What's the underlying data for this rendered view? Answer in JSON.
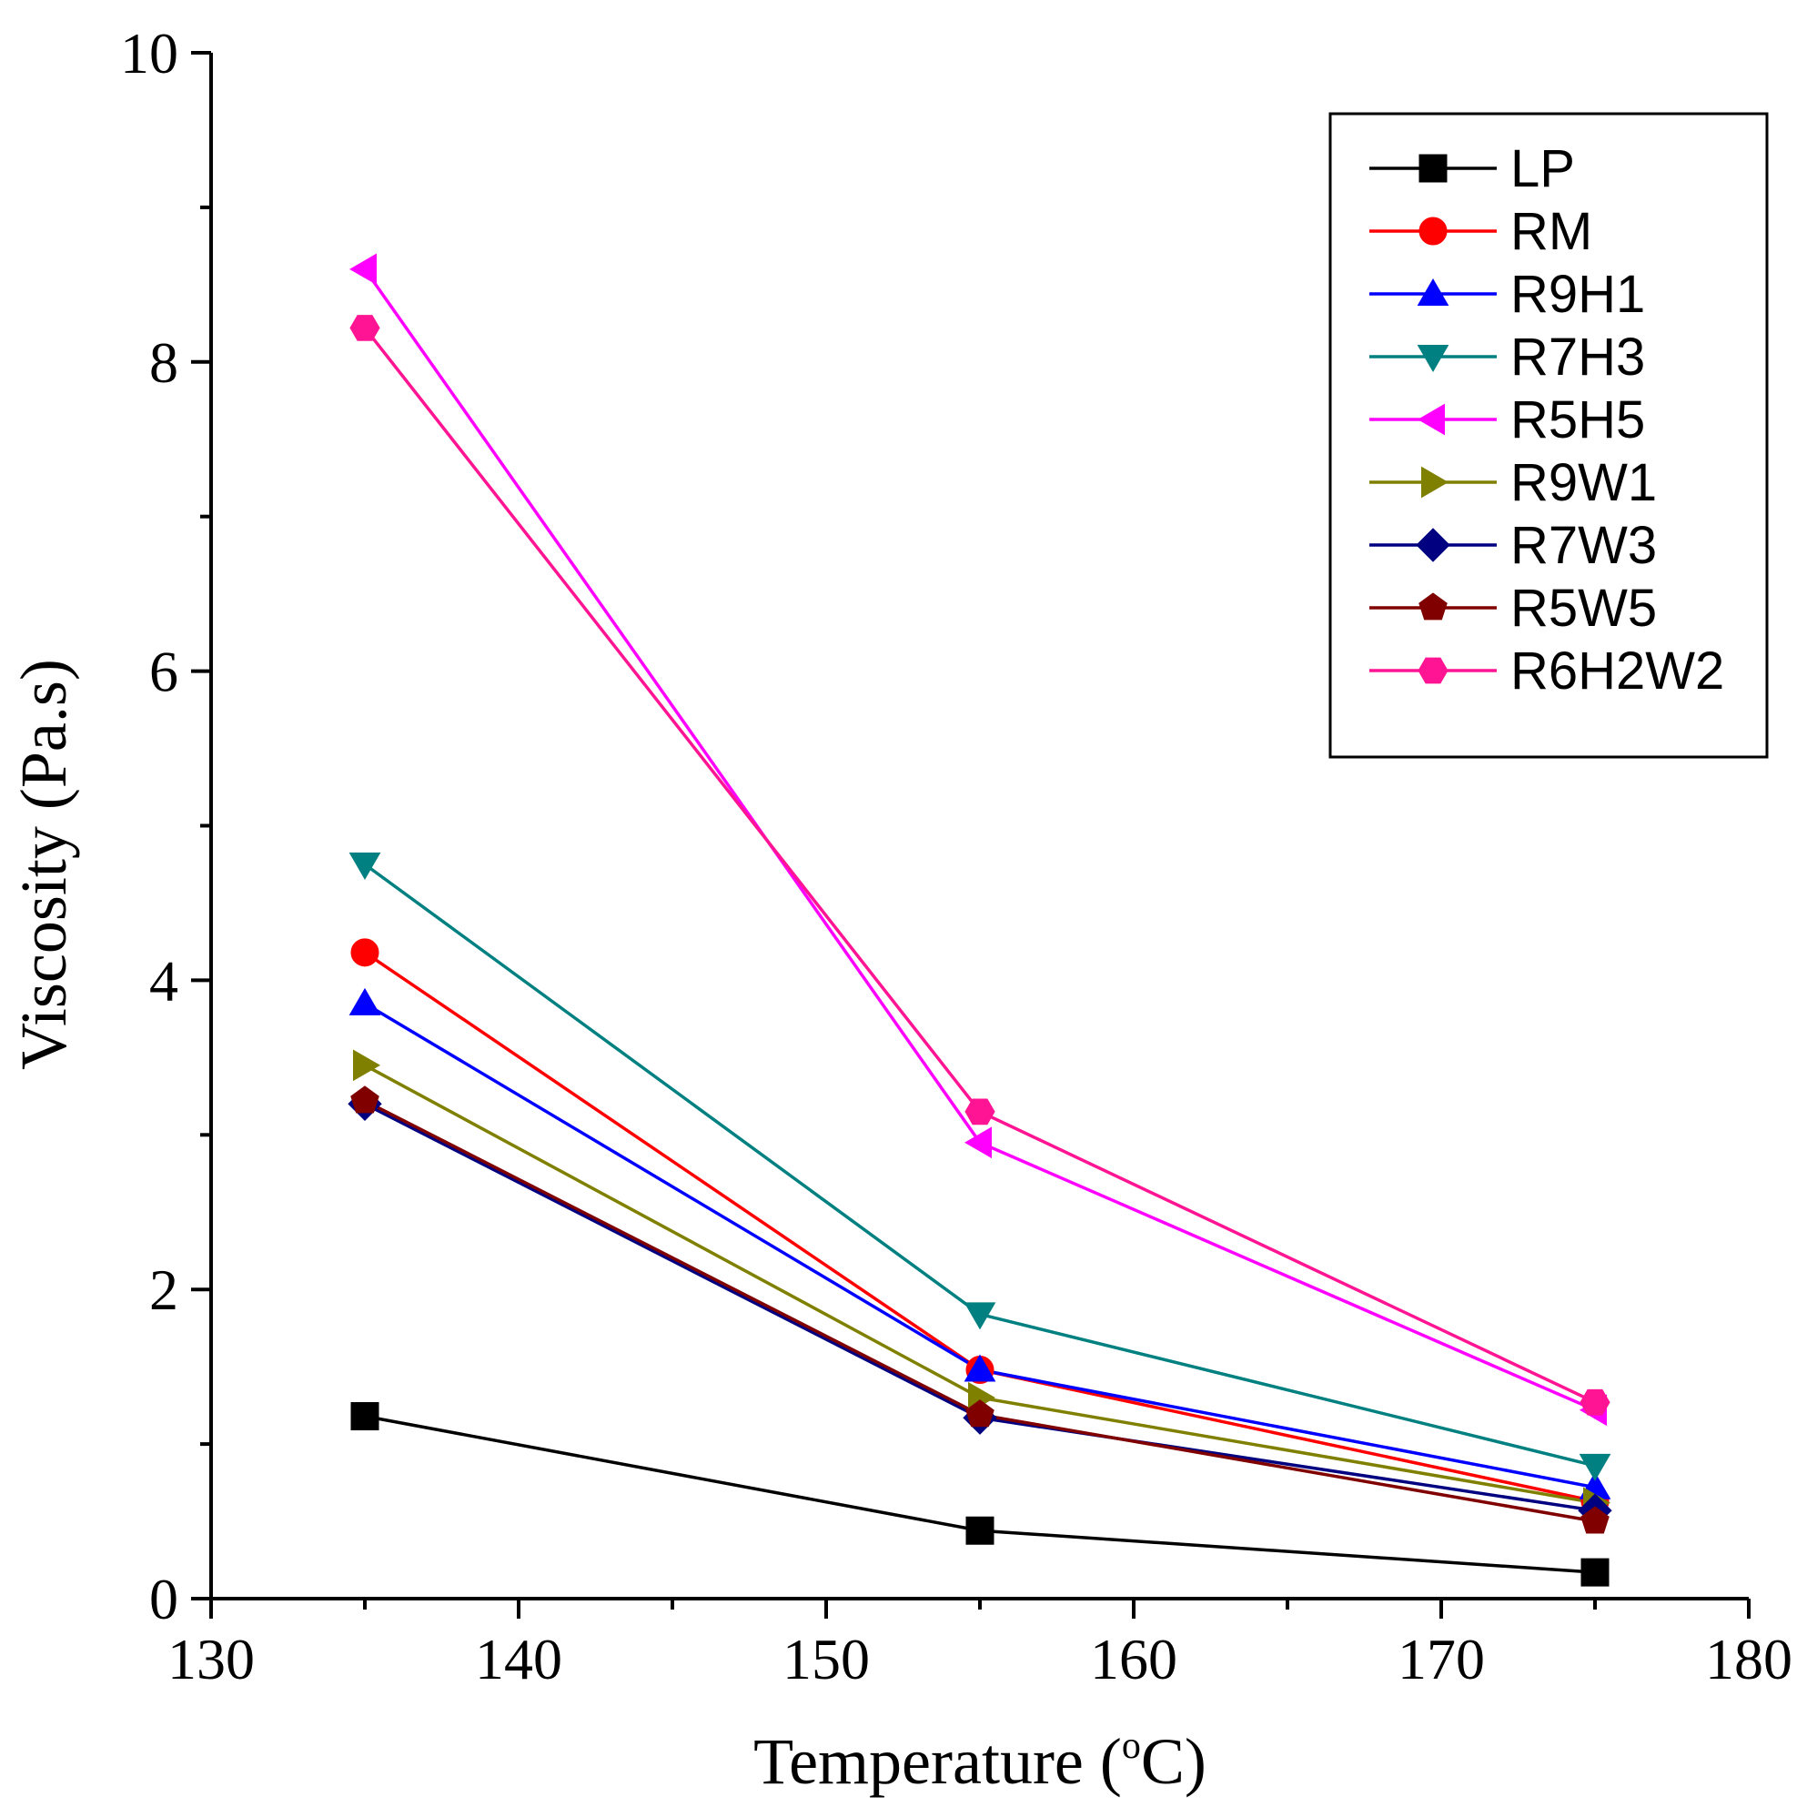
{
  "chart_data": {
    "type": "line",
    "title": "",
    "xlabel": "Temperature (",
    "xlabel_sup": "o",
    "xlabel_suffix": "C)",
    "ylabel": "Viscosity (Pa.s)",
    "xlim": [
      130,
      180
    ],
    "ylim": [
      0,
      10
    ],
    "x_major_ticks": [
      130,
      140,
      150,
      160,
      170,
      180
    ],
    "x_tick_labels": [
      "130",
      "140",
      "150",
      "160",
      "170",
      "180"
    ],
    "x_minor_ticks": [
      135,
      145,
      155,
      165,
      175
    ],
    "y_major_ticks": [
      0,
      2,
      4,
      6,
      8,
      10
    ],
    "y_tick_labels": [
      "0",
      "2",
      "4",
      "6",
      "8",
      "10"
    ],
    "y_minor_ticks": [
      1,
      3,
      5,
      7,
      9
    ],
    "grid": false,
    "legend_position": "top-right",
    "x": [
      135,
      155,
      175
    ],
    "series": [
      {
        "name": "LP",
        "values": [
          1.18,
          0.44,
          0.17
        ],
        "color": "#000000",
        "marker": "square"
      },
      {
        "name": "RM",
        "values": [
          4.18,
          1.48,
          0.63
        ],
        "color": "#ff0000",
        "marker": "circle"
      },
      {
        "name": "R9H1",
        "values": [
          3.85,
          1.48,
          0.72
        ],
        "color": "#0000ff",
        "marker": "triangle-up"
      },
      {
        "name": "R7H3",
        "values": [
          4.75,
          1.84,
          0.86
        ],
        "color": "#008080",
        "marker": "triangle-down"
      },
      {
        "name": "R5H5",
        "values": [
          8.6,
          2.95,
          1.22
        ],
        "color": "#ff00ff",
        "marker": "triangle-left"
      },
      {
        "name": "R9W1",
        "values": [
          3.45,
          1.3,
          0.62
        ],
        "color": "#808000",
        "marker": "triangle-right"
      },
      {
        "name": "R7W3",
        "values": [
          3.2,
          1.17,
          0.57
        ],
        "color": "#000080",
        "marker": "diamond"
      },
      {
        "name": "R5W5",
        "values": [
          3.22,
          1.19,
          0.5
        ],
        "color": "#800000",
        "marker": "pentagon"
      },
      {
        "name": "R6H2W2",
        "values": [
          8.22,
          3.15,
          1.27
        ],
        "color": "#ff1493",
        "marker": "hexagon"
      }
    ]
  }
}
